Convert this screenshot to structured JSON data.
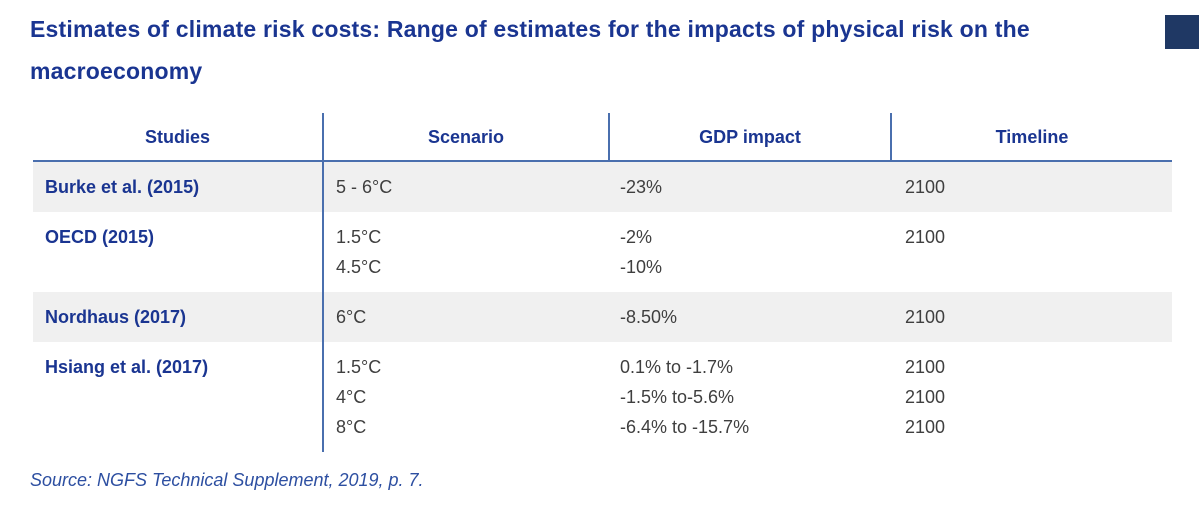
{
  "title": "Estimates of climate risk costs: Range of estimates for the impacts of physical risk on the macroeconomy",
  "table": {
    "headers": [
      "Studies",
      "Scenario",
      "GDP impact",
      "Timeline"
    ],
    "rows": [
      {
        "study": "Burke et al. (2015)",
        "scenario": [
          "5 - 6°C"
        ],
        "gdp_impact": [
          "-23%"
        ],
        "timeline": [
          "2100"
        ]
      },
      {
        "study": "OECD (2015)",
        "scenario": [
          "1.5°C",
          "4.5°C"
        ],
        "gdp_impact": [
          "-2%",
          "-10%"
        ],
        "timeline": [
          "2100"
        ]
      },
      {
        "study": "Nordhaus (2017)",
        "scenario": [
          "6°C"
        ],
        "gdp_impact": [
          "-8.50%"
        ],
        "timeline": [
          "2100"
        ]
      },
      {
        "study": "Hsiang et al. (2017)",
        "scenario": [
          "1.5°C",
          "4°C",
          "8°C"
        ],
        "gdp_impact": [
          "0.1% to -1.7%",
          "-1.5% to-5.6%",
          "-6.4% to -15.7%"
        ],
        "timeline": [
          "2100",
          "2100",
          "2100"
        ]
      }
    ]
  },
  "source": "Source: NGFS Technical Supplement, 2019, p. 7.",
  "colors": {
    "heading_blue": "#1a3591",
    "line_blue": "#4a6fae",
    "row_gray": "#f0f0f0",
    "body_text": "#3f3f3f",
    "source_blue": "#2d4fa1",
    "corner_square": "#1f3864"
  }
}
